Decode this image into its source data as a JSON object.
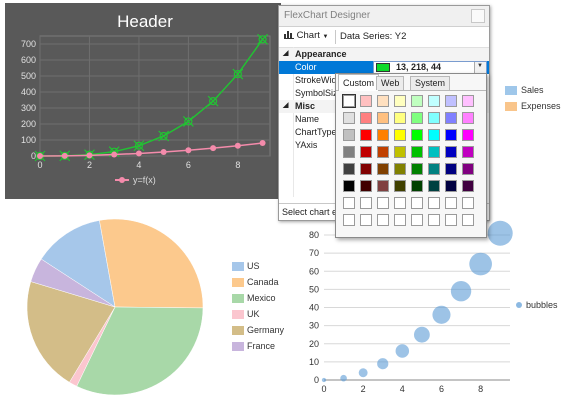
{
  "line_chart": {
    "title": "Header",
    "legend_label": "y=f(x)",
    "colors": {
      "background": "#595959",
      "green": "#22c233",
      "pink": "#f48bab"
    },
    "chart_data": {
      "type": "line",
      "title": "Header",
      "x": [
        0,
        1,
        2,
        3,
        4,
        5,
        6,
        7,
        8,
        9
      ],
      "series": [
        {
          "name": "",
          "values": [
            0,
            1,
            8,
            27,
            64,
            125,
            216,
            343,
            512,
            729
          ]
        },
        {
          "name": "y=f(x)",
          "values": [
            0,
            1,
            4,
            9,
            16,
            25,
            36,
            49,
            64,
            81
          ]
        }
      ],
      "xticks": [
        "0",
        "2",
        "4",
        "6",
        "8"
      ],
      "yticks": [
        "0",
        "100",
        "200",
        "300",
        "400",
        "500",
        "600",
        "700"
      ],
      "ylim": [
        0,
        750
      ],
      "xlim": [
        0,
        9.3
      ]
    }
  },
  "designer": {
    "title": "FlexChart Designer",
    "toolbar_chart": "Chart",
    "toolbar_series": "Data Series: Y2",
    "categories": [
      "Appearance",
      "Misc"
    ],
    "properties": [
      {
        "name": "Color",
        "value": "13, 218, 44"
      },
      {
        "name": "StrokeWid"
      },
      {
        "name": "SymbolSiz"
      },
      {
        "name": "Name"
      },
      {
        "name": "ChartType"
      },
      {
        "name": "YAxis"
      }
    ],
    "color_value": "#0dda2c",
    "status": "Select chart el"
  },
  "color_picker": {
    "tabs": [
      "Custom",
      "Web",
      "System"
    ],
    "grid": [
      [
        "#ffffff",
        "#ffc0c0",
        "#ffe0c0",
        "#ffffc0",
        "#c0ffc0",
        "#c0ffff",
        "#c0c0ff",
        "#ffc0ff"
      ],
      [
        "#e0e0e0",
        "#ff8080",
        "#ffc080",
        "#ffff80",
        "#80ff80",
        "#80ffff",
        "#8080ff",
        "#ff80ff"
      ],
      [
        "#c0c0c0",
        "#ff0000",
        "#ff8000",
        "#ffff00",
        "#00ff00",
        "#00ffff",
        "#0000ff",
        "#ff00ff"
      ],
      [
        "#808080",
        "#c00000",
        "#c04000",
        "#c0c000",
        "#00c000",
        "#00c0c0",
        "#0000c0",
        "#c000c0"
      ],
      [
        "#404040",
        "#800000",
        "#804000",
        "#808000",
        "#008000",
        "#008080",
        "#000080",
        "#800080"
      ],
      [
        "#000000",
        "#400000",
        "#804040",
        "#404000",
        "#004000",
        "#004040",
        "#000040",
        "#400040"
      ],
      [
        "#ffffff",
        "#ffffff",
        "#ffffff",
        "#ffffff",
        "#ffffff",
        "#ffffff",
        "#ffffff",
        "#ffffff"
      ],
      [
        "#ffffff",
        "#ffffff",
        "#ffffff",
        "#ffffff",
        "#ffffff",
        "#ffffff",
        "#ffffff",
        "#ffffff"
      ]
    ]
  },
  "sales_legend": [
    {
      "label": "Sales",
      "color": "#9fc7ea"
    },
    {
      "label": "Expenses",
      "color": "#f9c58b"
    }
  ],
  "pie_chart": {
    "chart_data": {
      "type": "pie",
      "categories": [
        "US",
        "Canada",
        "Mexico",
        "UK",
        "Germany",
        "France"
      ],
      "values": [
        13,
        28,
        32,
        1.5,
        21,
        4.5
      ],
      "colors": [
        "#a6c7ea",
        "#fcc98d",
        "#a8d8a8",
        "#fbc6cf",
        "#d3bd88",
        "#c8b5dd"
      ]
    }
  },
  "bubble_chart": {
    "legend_label": "bubbles",
    "bubble_color": "#5b9bd5",
    "chart_data": {
      "type": "scatter",
      "x": [
        0,
        1,
        2,
        3,
        4,
        5,
        6,
        7,
        8,
        9
      ],
      "y": [
        0,
        1,
        4,
        9,
        16,
        25,
        36,
        49,
        64,
        81
      ],
      "size": [
        1,
        2,
        3,
        4,
        5,
        6,
        7,
        8,
        9,
        10
      ],
      "yticks": [
        "0",
        "10",
        "20",
        "30",
        "40",
        "50",
        "60",
        "70",
        "80"
      ],
      "xticks": [
        "0",
        "2",
        "4",
        "6",
        "8"
      ],
      "ylim": [
        0,
        85
      ],
      "xlim": [
        0,
        9.5
      ]
    }
  }
}
